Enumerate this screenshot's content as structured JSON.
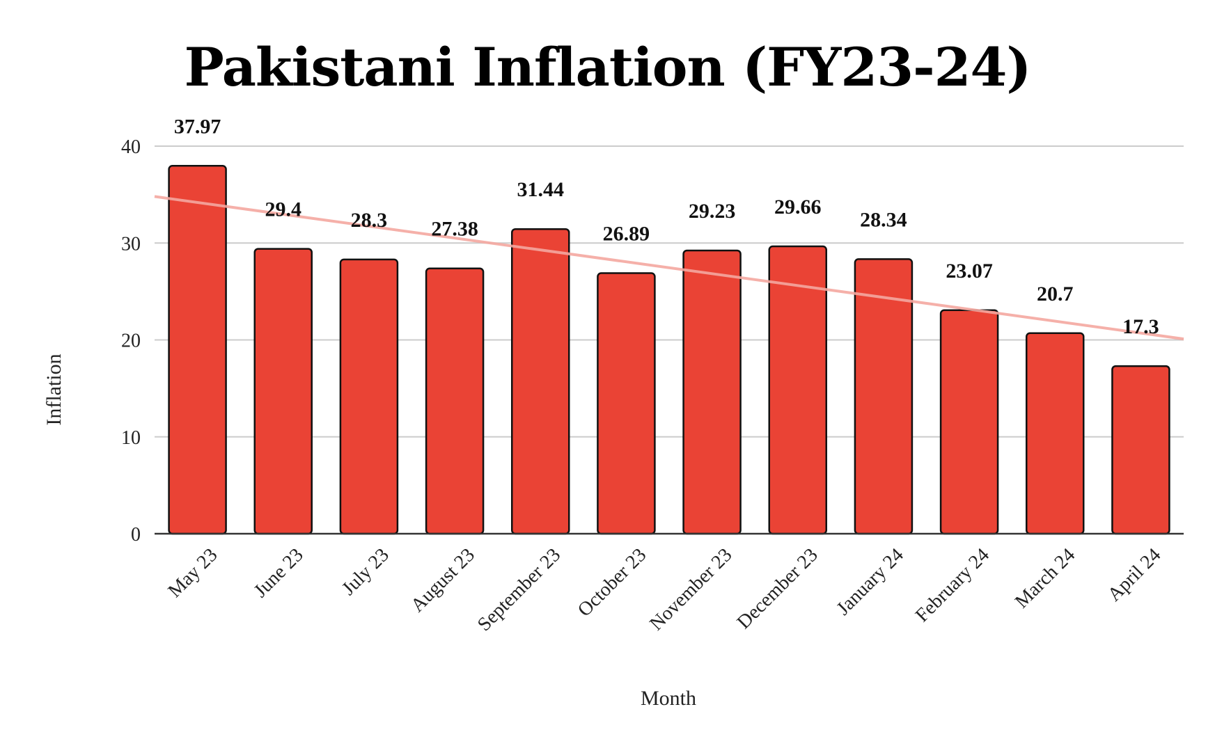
{
  "chart_data": {
    "type": "bar",
    "title": "Pakistani Inflation (FY23-24)",
    "xlabel": "Month",
    "ylabel": "Inflation",
    "categories": [
      "May 23",
      "June 23",
      "July 23",
      "August 23",
      "September 23",
      "October 23",
      "November 23",
      "December 23",
      "January 24",
      "February 24",
      "March 24",
      "April 24"
    ],
    "values": [
      37.97,
      29.4,
      28.3,
      27.38,
      31.44,
      26.89,
      29.23,
      29.66,
      28.34,
      23.07,
      20.7,
      17.3
    ],
    "data_labels": [
      "37.97",
      "29.4",
      "28.3",
      "27.38",
      "31.44",
      "26.89",
      "29.23",
      "29.66",
      "28.34",
      "23.07",
      "20.7",
      "17.3"
    ],
    "yticks": [
      "0",
      "10",
      "20",
      "30",
      "40"
    ],
    "ylim": [
      0,
      40
    ],
    "grid": true,
    "trendline": true,
    "trendline_values": [
      34.8,
      20.1
    ],
    "bar_color": "#EA4335",
    "trendline_color": "#F4A7A0"
  }
}
